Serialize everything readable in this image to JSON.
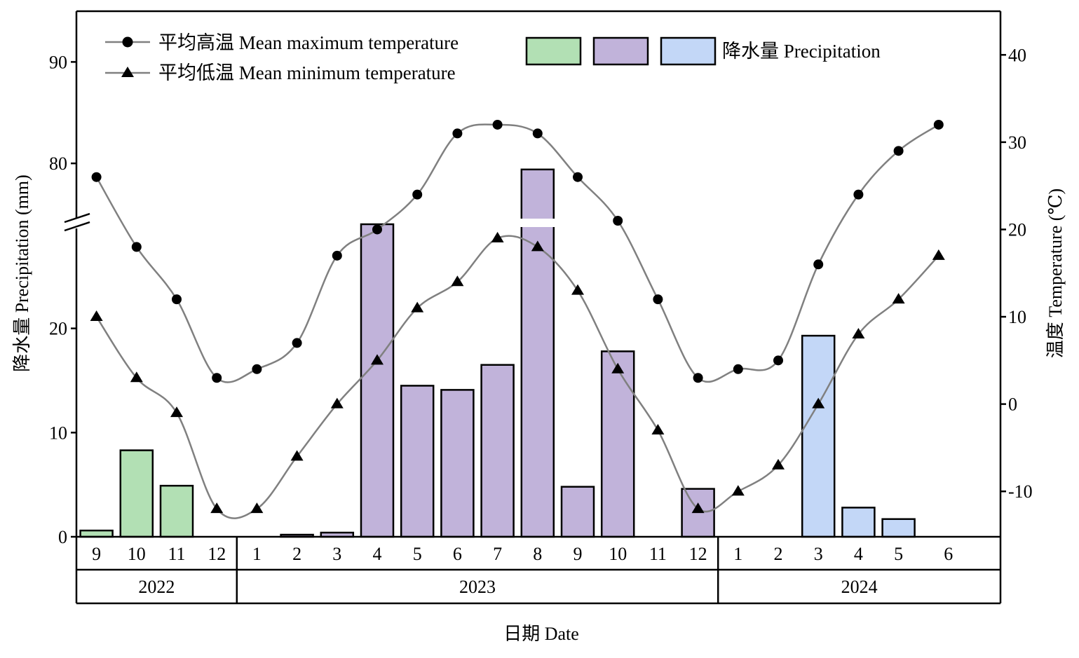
{
  "chart_data": {
    "type": "bar",
    "xlabel": "日期 Date",
    "ylabel_left": "降水量 Precipitation (mm)",
    "ylabel_right": "温度 Temperature (℃)",
    "years": [
      {
        "label": "2022",
        "start": 0,
        "end": 3
      },
      {
        "label": "2023",
        "start": 4,
        "end": 15
      },
      {
        "label": "2024",
        "start": 16,
        "end": 21
      }
    ],
    "categories": [
      "9",
      "10",
      "11",
      "12",
      "1",
      "2",
      "3",
      "4",
      "5",
      "6",
      "7",
      "8",
      "9",
      "10",
      "11",
      "12",
      "1",
      "2",
      "3",
      "4",
      "5",
      "6"
    ],
    "precip_axis": {
      "lower_ticks": [
        0,
        10,
        20
      ],
      "upper_ticks": [
        80,
        90
      ],
      "lower_range": [
        0,
        30
      ],
      "upper_range": [
        74,
        95
      ],
      "broken": true
    },
    "temp_axis": {
      "ticks": [
        -10,
        0,
        10,
        20,
        30,
        40
      ],
      "range": [
        -15.2,
        45
      ]
    },
    "series": [
      {
        "name": "降水量 Precipitation",
        "kind": "bar",
        "values": [
          0.6,
          8.3,
          4.9,
          0,
          0,
          0.2,
          0.4,
          30.0,
          14.5,
          14.1,
          16.5,
          79.4,
          4.8,
          17.8,
          0,
          4.6,
          0,
          0,
          19.3,
          2.8,
          1.7,
          null
        ],
        "group": [
          "2022",
          "2022",
          "2022",
          "2022",
          "2023",
          "2023",
          "2023",
          "2023",
          "2023",
          "2023",
          "2023",
          "2023",
          "2023",
          "2023",
          "2023",
          "2023",
          "2024",
          "2024",
          "2024",
          "2024",
          "2024",
          "2024"
        ]
      },
      {
        "name": "平均高温 Mean maximum temperature",
        "kind": "line",
        "marker": "circle",
        "values": [
          26,
          18,
          12,
          3,
          4,
          7,
          17,
          20,
          24,
          31,
          32,
          31,
          26,
          21,
          12,
          3,
          4,
          5,
          16,
          24,
          29,
          32
        ]
      },
      {
        "name": "平均低温 Mean minimum temperature",
        "kind": "line",
        "marker": "triangle",
        "values": [
          10,
          3,
          -1,
          -12,
          -12,
          -6,
          0,
          5,
          11,
          14,
          19,
          18,
          13,
          4,
          -3,
          -12,
          -10,
          -7,
          0,
          8,
          12,
          17
        ]
      }
    ],
    "colors": {
      "2022": "#b2e0b4",
      "2023": "#c1b3da",
      "2024": "#c3d7f7",
      "line": "#808080",
      "marker": "#000000"
    },
    "legend": {
      "max_temp": "平均高温 Mean maximum temperature",
      "min_temp": "平均低温 Mean minimum temperature",
      "precip": "降水量 Precipitation"
    }
  }
}
